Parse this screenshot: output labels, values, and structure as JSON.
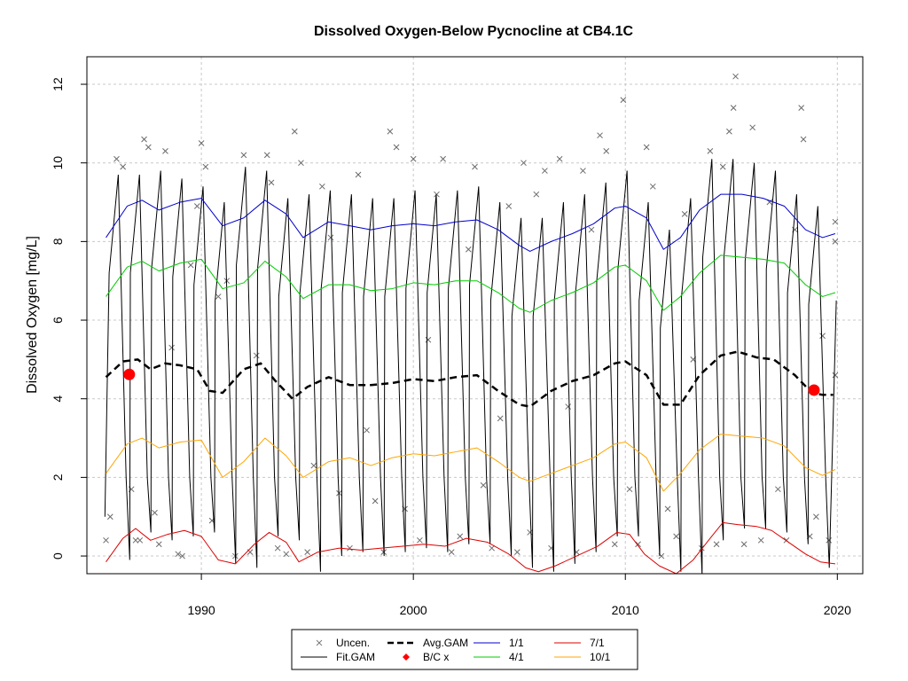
{
  "chart_data": {
    "type": "line",
    "title": "Dissolved Oxygen-Below Pycnocline at CB4.1C",
    "xlabel": "",
    "ylabel": "Dissolved Oxygen [mg/L]",
    "xlim": [
      1984.6,
      2021.2
    ],
    "ylim": [
      -0.45,
      12.7
    ],
    "x_ticks": [
      1990,
      2000,
      2010,
      2020
    ],
    "y_ticks": [
      0,
      2,
      4,
      6,
      8,
      10,
      12
    ],
    "grid": true,
    "legend_position": "bottom-center",
    "legend": [
      {
        "label": "Uncen.",
        "kind": "x",
        "color": "#7a7a7a"
      },
      {
        "label": "Fit.GAM",
        "kind": "line",
        "color": "#000000"
      },
      {
        "label": "Avg.GAM",
        "kind": "dashed",
        "color": "#000000"
      },
      {
        "label": "B/C x",
        "kind": "diamond",
        "color": "#ff0000"
      },
      {
        "label": "1/1",
        "kind": "line",
        "color": "#0000cc"
      },
      {
        "label": "4/1",
        "kind": "line",
        "color": "#00cc00"
      },
      {
        "label": "7/1",
        "kind": "line",
        "color": "#dd0000"
      },
      {
        "label": "10/1",
        "kind": "line",
        "color": "#ffa500"
      }
    ],
    "series_1_1": {
      "name": "1/1",
      "color": "#0000cc",
      "x": [
        1985.5,
        1986.5,
        1987.2,
        1988.0,
        1989.0,
        1990.0,
        1991.0,
        1992.0,
        1993.0,
        1994.0,
        1994.8,
        1996.0,
        1997.0,
        1998.0,
        1999.0,
        2000.0,
        2001.0,
        2002.0,
        2003.0,
        2004.0,
        2005.0,
        2005.5,
        2006.5,
        2007.5,
        2008.5,
        2009.5,
        2010.0,
        2011.0,
        2011.8,
        2012.6,
        2013.5,
        2014.5,
        2015.5,
        2016.5,
        2017.5,
        2018.5,
        2019.3,
        2019.9
      ],
      "y": [
        8.1,
        8.9,
        9.05,
        8.8,
        9.0,
        9.1,
        8.4,
        8.6,
        9.05,
        8.7,
        8.1,
        8.5,
        8.4,
        8.3,
        8.4,
        8.45,
        8.4,
        8.5,
        8.55,
        8.3,
        7.9,
        7.75,
        8.0,
        8.2,
        8.45,
        8.85,
        8.9,
        8.6,
        7.8,
        8.1,
        8.8,
        9.2,
        9.2,
        9.1,
        8.9,
        8.3,
        8.1,
        8.2
      ]
    },
    "series_4_1": {
      "name": "4/1",
      "color": "#00cc00",
      "x": [
        1985.5,
        1986.5,
        1987.2,
        1988.0,
        1989.0,
        1990.0,
        1991.0,
        1992.0,
        1993.0,
        1994.0,
        1994.8,
        1996.0,
        1997.0,
        1998.0,
        1999.0,
        2000.0,
        2001.0,
        2002.0,
        2003.0,
        2004.0,
        2005.0,
        2005.5,
        2006.5,
        2007.5,
        2008.5,
        2009.5,
        2010.0,
        2011.0,
        2011.8,
        2012.6,
        2013.5,
        2014.5,
        2015.5,
        2016.5,
        2017.5,
        2018.5,
        2019.3,
        2019.9
      ],
      "y": [
        6.6,
        7.35,
        7.5,
        7.25,
        7.45,
        7.55,
        6.8,
        6.95,
        7.5,
        7.1,
        6.55,
        6.9,
        6.9,
        6.75,
        6.8,
        6.95,
        6.9,
        7.0,
        7.0,
        6.7,
        6.3,
        6.2,
        6.5,
        6.7,
        6.95,
        7.35,
        7.4,
        7.0,
        6.25,
        6.6,
        7.2,
        7.65,
        7.6,
        7.55,
        7.45,
        6.9,
        6.6,
        6.7
      ]
    },
    "series_7_1": {
      "name": "7/1",
      "color": "#dd0000",
      "x": [
        1985.5,
        1986.3,
        1986.9,
        1987.6,
        1988.4,
        1989.2,
        1990.0,
        1990.8,
        1991.6,
        1992.5,
        1993.2,
        1994.0,
        1994.6,
        1995.5,
        1996.5,
        1997.5,
        1998.5,
        1999.5,
        2000.5,
        2001.5,
        2002.5,
        2003.5,
        2004.5,
        2005.3,
        2005.9,
        2006.7,
        2007.7,
        2008.7,
        2009.6,
        2010.2,
        2010.9,
        2011.6,
        2012.4,
        2013.2,
        2014.0,
        2014.6,
        2015.3,
        2016.2,
        2016.9,
        2017.7,
        2018.5,
        2019.2,
        2019.9
      ],
      "y": [
        -0.15,
        0.45,
        0.7,
        0.4,
        0.55,
        0.65,
        0.5,
        -0.1,
        -0.2,
        0.3,
        0.6,
        0.35,
        -0.15,
        0.1,
        0.2,
        0.15,
        0.2,
        0.25,
        0.3,
        0.25,
        0.45,
        0.35,
        0.05,
        -0.3,
        -0.4,
        -0.25,
        0.0,
        0.25,
        0.6,
        0.55,
        0.05,
        -0.25,
        -0.45,
        -0.1,
        0.45,
        0.85,
        0.8,
        0.75,
        0.65,
        0.35,
        0.05,
        -0.15,
        -0.2
      ]
    },
    "series_10_1": {
      "name": "10/1",
      "color": "#ffa500",
      "x": [
        1985.5,
        1986.5,
        1987.2,
        1988.0,
        1989.0,
        1990.0,
        1991.0,
        1992.0,
        1993.0,
        1994.0,
        1994.8,
        1996.0,
        1997.0,
        1998.0,
        1999.0,
        2000.0,
        2001.0,
        2002.0,
        2003.0,
        2004.0,
        2005.0,
        2005.5,
        2006.5,
        2007.5,
        2008.5,
        2009.5,
        2010.0,
        2011.0,
        2011.8,
        2012.6,
        2013.5,
        2014.5,
        2015.5,
        2016.5,
        2017.5,
        2018.5,
        2019.3,
        2019.9
      ],
      "y": [
        2.1,
        2.85,
        3.0,
        2.75,
        2.9,
        2.95,
        2.0,
        2.4,
        3.0,
        2.55,
        2.0,
        2.4,
        2.5,
        2.3,
        2.5,
        2.6,
        2.55,
        2.65,
        2.75,
        2.4,
        2.0,
        1.9,
        2.1,
        2.3,
        2.5,
        2.85,
        2.9,
        2.5,
        1.65,
        2.1,
        2.7,
        3.1,
        3.05,
        3.0,
        2.8,
        2.25,
        2.05,
        2.2
      ]
    },
    "avg_gam": {
      "name": "Avg.GAM",
      "color": "#000000",
      "x": [
        1985.5,
        1986.3,
        1987.0,
        1987.6,
        1988.3,
        1989.0,
        1989.8,
        1990.4,
        1991.0,
        1992.0,
        1992.8,
        1993.5,
        1994.3,
        1995.0,
        1996.0,
        1997.0,
        1998.0,
        1999.0,
        2000.0,
        2001.0,
        2002.0,
        2003.0,
        2004.0,
        2005.0,
        2005.5,
        2006.5,
        2007.5,
        2008.5,
        2009.5,
        2010.0,
        2011.0,
        2011.8,
        2012.6,
        2013.5,
        2014.5,
        2015.3,
        2016.2,
        2017.0,
        2018.0,
        2018.8,
        2019.3,
        2019.8
      ],
      "y": [
        4.55,
        4.95,
        5.0,
        4.75,
        4.9,
        4.85,
        4.75,
        4.2,
        4.15,
        4.75,
        4.9,
        4.45,
        4.0,
        4.3,
        4.55,
        4.35,
        4.35,
        4.4,
        4.5,
        4.45,
        4.55,
        4.6,
        4.2,
        3.85,
        3.8,
        4.2,
        4.45,
        4.6,
        4.9,
        4.95,
        4.6,
        3.85,
        3.85,
        4.6,
        5.1,
        5.2,
        5.05,
        5.0,
        4.6,
        4.15,
        4.1,
        4.1
      ]
    },
    "fit_gam_envelope": {
      "name": "Fit.GAM",
      "years": [
        1986,
        1987,
        1988,
        1989,
        1990,
        1991,
        1992,
        1993,
        1994,
        1995,
        1996,
        1997,
        1998,
        1999,
        2000,
        2001,
        2002,
        2003,
        2004,
        2005,
        2006,
        2007,
        2008,
        2009,
        2010,
        2011,
        2012,
        2013,
        2014,
        2015,
        2016,
        2017,
        2018,
        2019
      ],
      "peaks": [
        9.7,
        9.7,
        9.8,
        9.6,
        9.4,
        9.0,
        9.9,
        9.8,
        9.1,
        9.2,
        9.3,
        9.2,
        9.1,
        9.1,
        9.3,
        9.2,
        9.3,
        9.4,
        9.0,
        8.6,
        8.6,
        9.0,
        9.2,
        9.5,
        9.8,
        9.0,
        8.3,
        9.1,
        10.1,
        10.1,
        10.0,
        9.8,
        9.2,
        8.9
      ],
      "troughs": [
        -0.1,
        0.6,
        0.4,
        0.5,
        0.6,
        -0.2,
        -0.3,
        0.5,
        0.4,
        -0.4,
        0.0,
        0.1,
        0.0,
        0.1,
        0.2,
        0.1,
        0.3,
        0.3,
        0.0,
        -0.3,
        -0.4,
        -0.2,
        0.1,
        0.5,
        0.5,
        0.0,
        -0.4,
        -0.5,
        0.4,
        0.7,
        0.7,
        0.6,
        0.3,
        -0.3
      ],
      "last_point": {
        "x": 2019.95,
        "y": 6.5
      }
    },
    "bc_points": [
      {
        "x": 1986.6,
        "y": 4.62
      },
      {
        "x": 2018.9,
        "y": 4.22
      }
    ],
    "uncen_observations": [
      [
        1985.5,
        0.4
      ],
      [
        1985.7,
        1.0
      ],
      [
        1986.0,
        10.1
      ],
      [
        1986.3,
        9.9
      ],
      [
        1986.5,
        4.6
      ],
      [
        1986.7,
        1.7
      ],
      [
        1986.9,
        0.4
      ],
      [
        1987.1,
        0.4
      ],
      [
        1987.3,
        10.6
      ],
      [
        1987.5,
        10.4
      ],
      [
        1987.8,
        1.1
      ],
      [
        1988.0,
        0.3
      ],
      [
        1988.3,
        10.3
      ],
      [
        1988.6,
        5.3
      ],
      [
        1988.9,
        0.05
      ],
      [
        1989.1,
        0.0
      ],
      [
        1989.5,
        7.4
      ],
      [
        1989.8,
        8.9
      ],
      [
        1990.0,
        10.5
      ],
      [
        1990.2,
        9.9
      ],
      [
        1990.5,
        0.9
      ],
      [
        1990.8,
        6.6
      ],
      [
        1991.2,
        7.0
      ],
      [
        1991.6,
        0.0
      ],
      [
        1992.0,
        10.2
      ],
      [
        1992.3,
        0.1
      ],
      [
        1992.6,
        5.1
      ],
      [
        1993.1,
        10.2
      ],
      [
        1993.3,
        9.5
      ],
      [
        1993.6,
        0.2
      ],
      [
        1994.0,
        0.05
      ],
      [
        1994.4,
        10.8
      ],
      [
        1994.7,
        10.0
      ],
      [
        1995.0,
        0.1
      ],
      [
        1995.3,
        2.3
      ],
      [
        1995.7,
        9.4
      ],
      [
        1996.1,
        8.1
      ],
      [
        1996.5,
        1.6
      ],
      [
        1997.0,
        0.2
      ],
      [
        1997.4,
        9.7
      ],
      [
        1997.8,
        3.2
      ],
      [
        1998.2,
        1.4
      ],
      [
        1998.6,
        0.1
      ],
      [
        1998.9,
        10.8
      ],
      [
        1999.2,
        10.4
      ],
      [
        1999.6,
        1.2
      ],
      [
        2000.0,
        10.1
      ],
      [
        2000.3,
        0.4
      ],
      [
        2000.7,
        5.5
      ],
      [
        2001.1,
        9.2
      ],
      [
        2001.4,
        10.1
      ],
      [
        2001.8,
        0.1
      ],
      [
        2002.2,
        0.5
      ],
      [
        2002.6,
        7.8
      ],
      [
        2002.9,
        9.9
      ],
      [
        2003.3,
        1.8
      ],
      [
        2003.7,
        0.2
      ],
      [
        2004.1,
        3.5
      ],
      [
        2004.5,
        8.9
      ],
      [
        2004.9,
        0.1
      ],
      [
        2005.2,
        10.0
      ],
      [
        2005.5,
        0.6
      ],
      [
        2005.8,
        9.2
      ],
      [
        2006.2,
        9.8
      ],
      [
        2006.5,
        0.2
      ],
      [
        2006.9,
        10.1
      ],
      [
        2007.3,
        3.8
      ],
      [
        2007.7,
        0.1
      ],
      [
        2008.0,
        9.8
      ],
      [
        2008.4,
        8.3
      ],
      [
        2008.8,
        10.7
      ],
      [
        2009.1,
        10.3
      ],
      [
        2009.5,
        0.3
      ],
      [
        2009.9,
        11.6
      ],
      [
        2010.2,
        1.7
      ],
      [
        2010.6,
        0.3
      ],
      [
        2011.0,
        10.4
      ],
      [
        2011.3,
        9.4
      ],
      [
        2011.7,
        0.0
      ],
      [
        2012.0,
        1.2
      ],
      [
        2012.4,
        0.5
      ],
      [
        2012.8,
        8.7
      ],
      [
        2013.2,
        5.0
      ],
      [
        2013.6,
        0.2
      ],
      [
        2014.0,
        10.3
      ],
      [
        2014.3,
        0.3
      ],
      [
        2014.6,
        9.9
      ],
      [
        2014.9,
        10.8
      ],
      [
        2015.1,
        11.4
      ],
      [
        2015.2,
        12.2
      ],
      [
        2015.6,
        0.3
      ],
      [
        2016.0,
        10.9
      ],
      [
        2016.4,
        0.4
      ],
      [
        2016.8,
        9.0
      ],
      [
        2017.2,
        1.7
      ],
      [
        2017.6,
        0.4
      ],
      [
        2018.0,
        8.3
      ],
      [
        2018.3,
        11.4
      ],
      [
        2018.4,
        10.6
      ],
      [
        2018.7,
        0.5
      ],
      [
        2019.0,
        1.0
      ],
      [
        2019.3,
        5.6
      ],
      [
        2019.6,
        0.4
      ],
      [
        2019.9,
        8.5
      ],
      [
        2019.9,
        8.0
      ],
      [
        2019.9,
        4.6
      ]
    ]
  }
}
